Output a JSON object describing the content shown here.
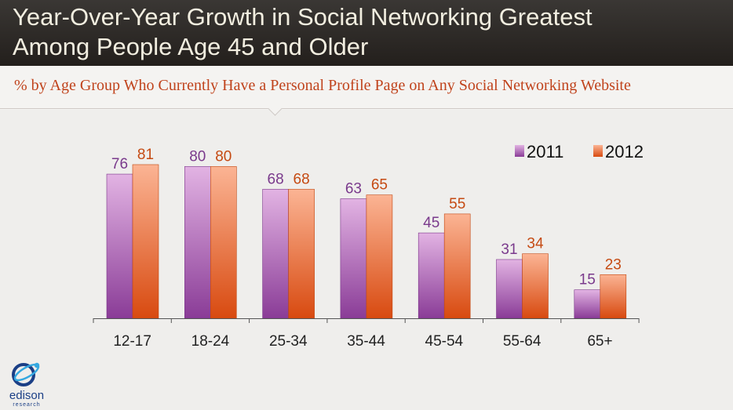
{
  "header": {
    "title_line1": "Year-Over-Year Growth in Social Networking Greatest",
    "title_line2": "Among People Age 45 and Older"
  },
  "subtitle": "% by Age Group Who Currently Have a Personal Profile Page on Any Social Networking Website",
  "logo": {
    "icon": "edison-globe-icon",
    "word": "edison",
    "sub": "research"
  },
  "colors": {
    "series_2011_top": "#e2b3e3",
    "series_2011_bottom": "#8a3c97",
    "series_2012_top": "#fbb494",
    "series_2012_bottom": "#d84a10",
    "label_2011": "#7a3a8c",
    "label_2012": "#c54a12"
  },
  "chart_data": {
    "type": "bar",
    "categories": [
      "12-17",
      "18-24",
      "25-34",
      "35-44",
      "45-54",
      "55-64",
      "65+"
    ],
    "series": [
      {
        "name": "2011",
        "values": [
          76,
          80,
          68,
          63,
          45,
          31,
          15
        ]
      },
      {
        "name": "2012",
        "values": [
          81,
          80,
          68,
          65,
          55,
          34,
          23
        ]
      }
    ],
    "ylim": [
      0,
      100
    ],
    "grid": false,
    "legend": "top-right"
  }
}
